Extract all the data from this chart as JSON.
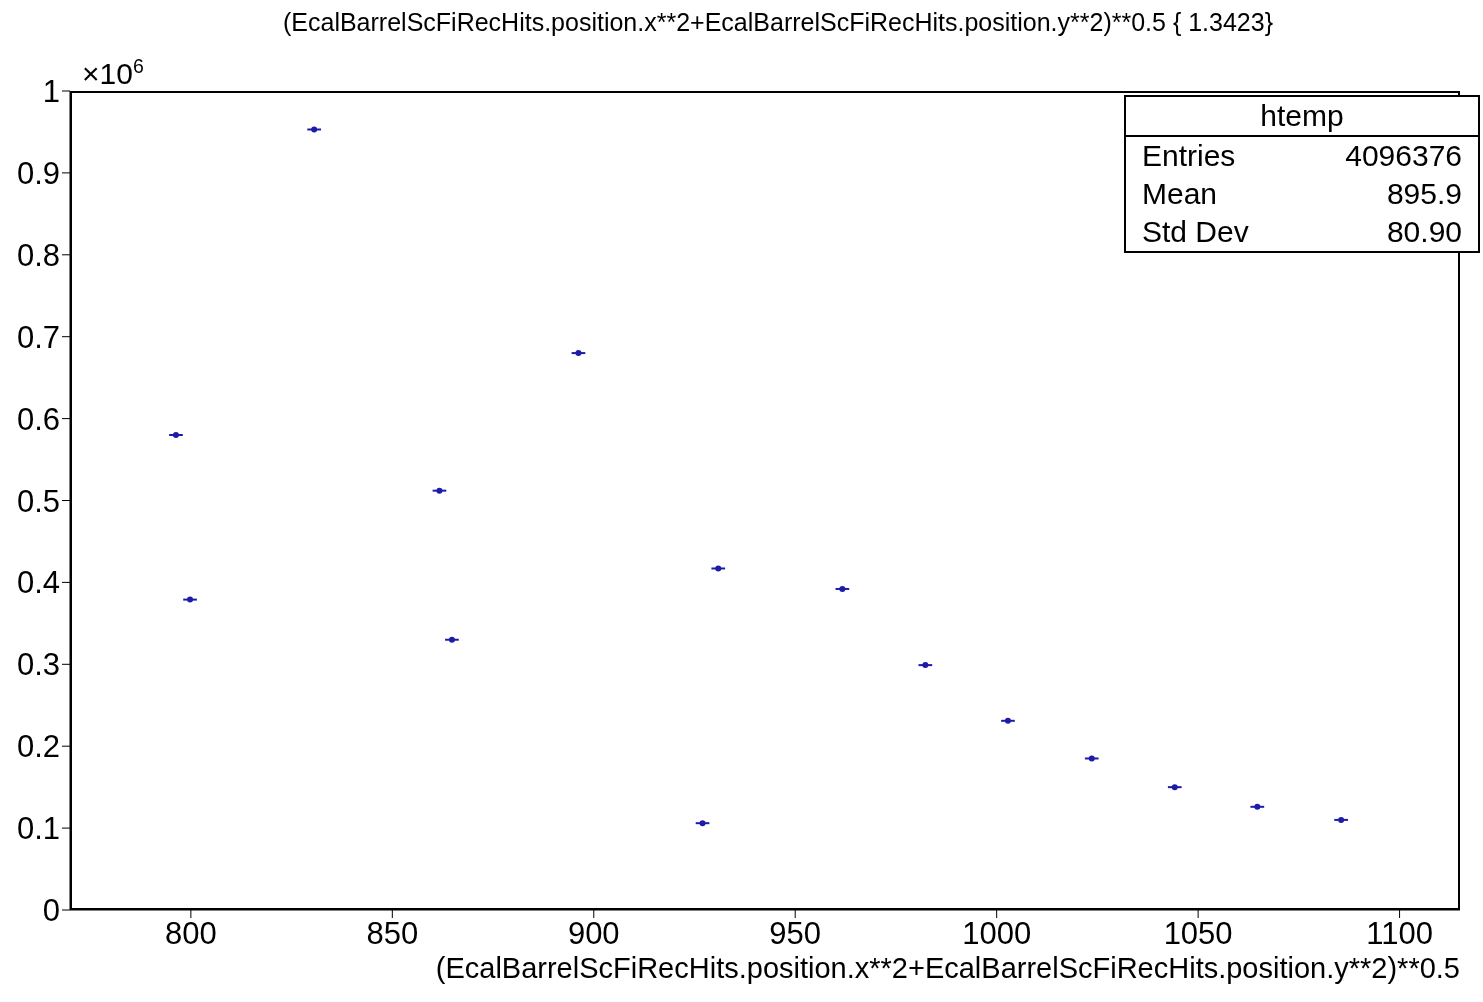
{
  "chart_data": {
    "type": "scatter",
    "title": "(EcalBarrelScFiRecHits.position.x**2+EcalBarrelScFiRecHits.position.y**2)**0.5 { 1.3423}",
    "xlabel": "(EcalBarrelScFiRecHits.position.x**2+EcalBarrelScFiRecHits.position.y**2)**0.5",
    "x": [
      796.3,
      799.8,
      830.6,
      861.7,
      864.8,
      896.2,
      927.0,
      930.9,
      961.7,
      982.3,
      1002.8,
      1023.6,
      1044.2,
      1064.7,
      1085.5
    ],
    "marker": "circle",
    "series": [
      {
        "color": "#1c1ca8",
        "xerrors": [
          1.7,
          1.7,
          1.7,
          1.7,
          1.7,
          1.7,
          1.7,
          1.7,
          1.7,
          1.7,
          1.7,
          1.7,
          1.7,
          1.7,
          1.7
        ],
        "values": [
          0.58,
          0.379,
          0.953,
          0.512,
          0.33,
          0.68,
          0.106,
          0.417,
          0.392,
          0.299,
          0.231,
          0.185,
          0.15,
          0.126,
          0.11
        ]
      }
    ],
    "xlim": [
      770,
      1115
    ],
    "xticks": [
      800,
      850,
      900,
      950,
      1000,
      1050,
      1100
    ],
    "ylim": [
      0,
      1
    ],
    "yticks": [
      0,
      0.1,
      0.2,
      0.3,
      0.4,
      0.5,
      0.6,
      0.7,
      0.8,
      0.9,
      1
    ],
    "annotations": [
      "×10$^{6}$",
      "htemp",
      "Entries",
      "4096376",
      "Mean",
      "895.9",
      "Std Dev",
      "80.90"
    ],
    "grid": false,
    "legend": false
  }
}
